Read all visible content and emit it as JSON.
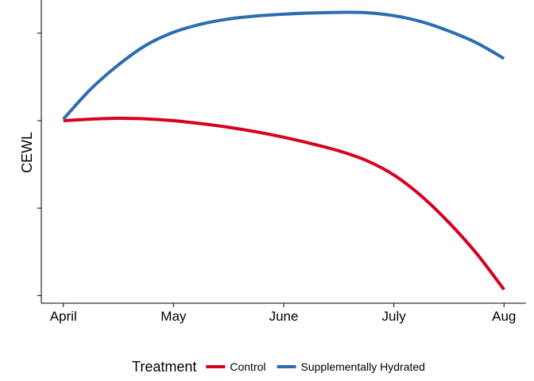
{
  "chart_data": {
    "type": "line",
    "title": "",
    "xlabel": "",
    "ylabel": "CEWL",
    "x": [
      "April",
      "May",
      "June",
      "July",
      "Aug"
    ],
    "series": [
      {
        "name": "Control",
        "color": "#D7001F",
        "values": [
          [
            0,
            0.6
          ],
          [
            0.25,
            0.605
          ],
          [
            0.5,
            0.608
          ],
          [
            0.75,
            0.606
          ],
          [
            1.0,
            0.6
          ],
          [
            1.25,
            0.59
          ],
          [
            1.5,
            0.578
          ],
          [
            1.75,
            0.563
          ],
          [
            2.0,
            0.545
          ],
          [
            2.25,
            0.524
          ],
          [
            2.5,
            0.5
          ],
          [
            2.75,
            0.468
          ],
          [
            3.0,
            0.42
          ],
          [
            3.25,
            0.35
          ],
          [
            3.5,
            0.262
          ],
          [
            3.75,
            0.16
          ],
          [
            4.0,
            0.04
          ]
        ]
      },
      {
        "name": "Supplementally Hydrated",
        "color": "#2C6DB0",
        "values": [
          [
            0,
            0.605
          ],
          [
            0.25,
            0.705
          ],
          [
            0.5,
            0.785
          ],
          [
            0.75,
            0.85
          ],
          [
            1.0,
            0.893
          ],
          [
            1.25,
            0.92
          ],
          [
            1.5,
            0.937
          ],
          [
            1.75,
            0.947
          ],
          [
            2.0,
            0.953
          ],
          [
            2.25,
            0.957
          ],
          [
            2.5,
            0.959
          ],
          [
            2.75,
            0.958
          ],
          [
            3.0,
            0.948
          ],
          [
            3.25,
            0.928
          ],
          [
            3.5,
            0.897
          ],
          [
            3.75,
            0.858
          ],
          [
            4.0,
            0.806
          ]
        ]
      }
    ],
    "xlim": [
      -0.2,
      4.2
    ],
    "ylim": [
      0,
      1
    ],
    "grid": false,
    "legend": {
      "position": "bottom",
      "title": "Treatment",
      "entries": [
        "Control",
        "Supplementally Hydrated"
      ]
    }
  }
}
